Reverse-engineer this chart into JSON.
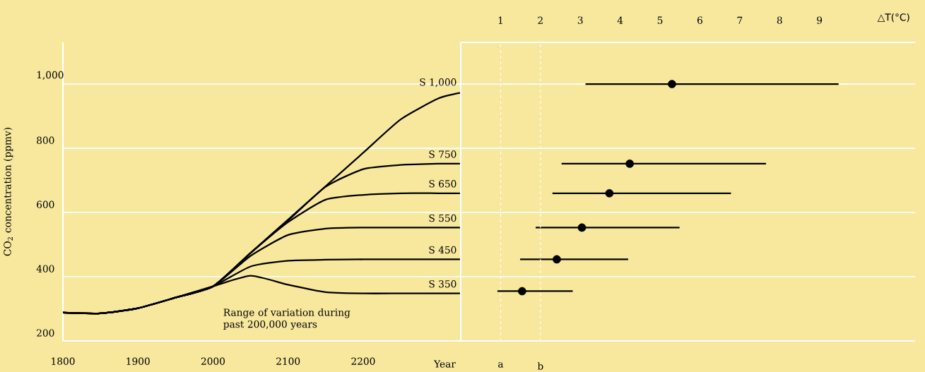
{
  "chart_data": [
    {
      "type": "line",
      "xlabel": "Year",
      "ylabel": "CO$_{2}$ concentration (ppmv)",
      "x": [
        1800,
        1850,
        1900,
        1950,
        2000,
        2050,
        2100,
        2150,
        2200,
        2250,
        2300,
        2330
      ],
      "xlim": [
        1800,
        2330
      ],
      "xticks": [
        1800,
        1900,
        2000,
        2100,
        2200
      ],
      "ylim": [
        200,
        1130
      ],
      "yticks": [
        200,
        400,
        600,
        800,
        {
          "value": 1000,
          "label": "1,000"
        }
      ],
      "grid": "y",
      "marker": "none",
      "series": [
        {
          "name": "S 1,000",
          "color": "#000000",
          "values": [
            288,
            286,
            302,
            335,
            370,
            474,
            578,
            682,
            786,
            890,
            955,
            973
          ]
        },
        {
          "name": "S 750",
          "color": "#000000",
          "values": [
            288,
            286,
            302,
            335,
            370,
            474,
            575,
            680,
            735,
            748,
            752,
            752
          ]
        },
        {
          "name": "S 650",
          "color": "#000000",
          "values": [
            288,
            286,
            302,
            335,
            370,
            474,
            570,
            640,
            655,
            660,
            660,
            660
          ]
        },
        {
          "name": "S 550",
          "color": "#000000",
          "values": [
            288,
            286,
            302,
            335,
            370,
            465,
            530,
            550,
            553,
            553,
            553,
            553
          ]
        },
        {
          "name": "S 450",
          "color": "#000000",
          "values": [
            288,
            286,
            302,
            335,
            370,
            432,
            450,
            453,
            454,
            454,
            454,
            454
          ]
        },
        {
          "name": "S 350",
          "color": "#000000",
          "values": [
            288,
            286,
            302,
            335,
            370,
            403,
            375,
            352,
            348,
            348,
            348,
            348
          ]
        }
      ],
      "annotations": [
        "Range of variation during past 200,000 years"
      ]
    },
    {
      "type": "scatter",
      "xlabel": "△T(°C)",
      "x": [
        5.3,
        4.24,
        3.73,
        3.04,
        2.41,
        1.54
      ],
      "values": [
        1000,
        752,
        660,
        553,
        454,
        355
      ],
      "xerrors": [
        [
          3.13,
          9.48
        ],
        [
          2.53,
          7.66
        ],
        [
          2.3,
          6.78
        ],
        [
          1.88,
          5.49
        ],
        [
          1.49,
          4.2
        ],
        [
          0.92,
          2.81
        ]
      ],
      "color": "#000000",
      "marker": "circle",
      "xlim": [
        0,
        11.4
      ],
      "xticks": [
        1,
        2,
        3,
        4,
        5,
        6,
        7,
        8,
        9
      ],
      "ylim": [
        200,
        1130
      ],
      "yticks": [
        200,
        400,
        600,
        800,
        1000
      ],
      "tick_labels": "x",
      "grid": "y",
      "ref_lines": [
        {
          "axis": "x",
          "value": 1,
          "label": "a",
          "color": "#ffffff",
          "line_style": "dashed"
        },
        {
          "axis": "x",
          "value": 2,
          "label": "b",
          "color": "#ffffff",
          "line_style": "dashed"
        }
      ]
    }
  ]
}
